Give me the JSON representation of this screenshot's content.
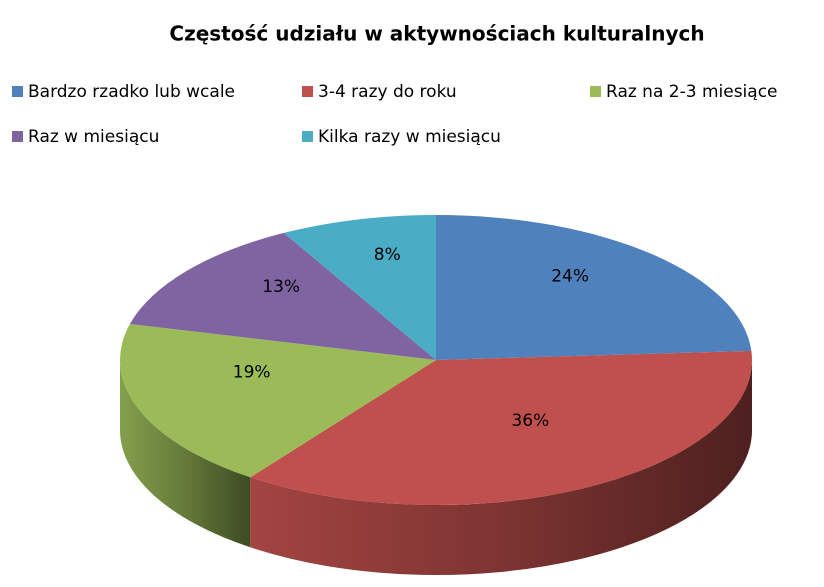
{
  "chart_data": {
    "type": "pie",
    "title": "Częstość udziału w aktywnościach kulturalnych",
    "categories": [
      "Bardzo rzadko lub wcale",
      "3-4 razy do roku",
      "Raz na 2-3 miesiące",
      "Raz w miesiącu",
      "Kilka razy w miesiącu"
    ],
    "values": [
      24,
      36,
      19,
      13,
      8
    ],
    "value_labels": [
      "24%",
      "36%",
      "19%",
      "13%",
      "8%"
    ],
    "colors": [
      "#4f81bd",
      "#c0504d",
      "#9bbb59",
      "#8064a2",
      "#4bacc6"
    ],
    "legend": "top"
  }
}
